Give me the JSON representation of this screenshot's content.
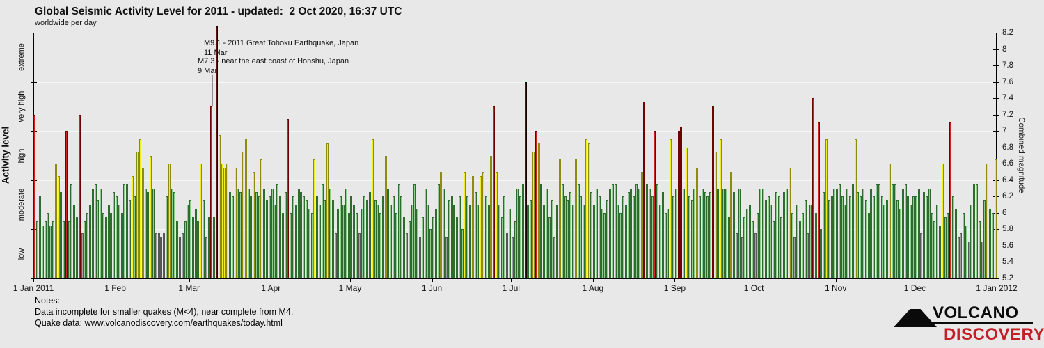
{
  "header": {
    "title": "Global Seismic Activity Level for 2011 - updated:  2 Oct 2020, 16:37 UTC",
    "subtitle": "worldwide per day"
  },
  "left_axis": {
    "label": "Activity level",
    "categories": [
      "extreme",
      "very high",
      "high",
      "moderate",
      "low"
    ]
  },
  "right_axis": {
    "label": "Combined magnitude",
    "min": 5.2,
    "max": 8.2,
    "tick_step": 0.2
  },
  "x_axis": {
    "tick_labels": [
      "1 Jan 2011",
      "1 Feb",
      "1 Mar",
      "1 Apr",
      "1 May",
      "1 Jun",
      "1 Jul",
      "1 Aug",
      "1 Sep",
      "1 Oct",
      "1 Nov",
      "1 Dec",
      "1 Jan 2012"
    ]
  },
  "annotations": {
    "tohoku": {
      "line1": "M9.1 - 2011 Great Tohoku Earthquake, Japan",
      "line2": "11 Mar"
    },
    "honshu": {
      "line1": "M7.3 - near the east coast of Honshu, Japan",
      "line2": "9 Mar"
    }
  },
  "notes": {
    "heading": "Notes:",
    "line1": "Data incomplete for smaller quakes (M<4), near complete from M4.",
    "line2": "Quake data: www.volcanodiscovery.com/earthquakes/today.html"
  },
  "logo": {
    "top": "VOLCANO",
    "bottom": "DISCOVERY",
    "accent_color": "#c41e26"
  },
  "chart_data": {
    "type": "bar",
    "title": "Global Seismic Activity Level for 2011",
    "subtitle": "worldwide per day",
    "x": "day of year 2011 (one bar per day, 1 Jan 2011 - 31 Dec 2011)",
    "ylabel_right": "Combined magnitude",
    "ylabel_left": "Activity level",
    "ylim": [
      5.2,
      8.2
    ],
    "grid_values": [
      5.8,
      6.4,
      7.0,
      7.6
    ],
    "levels": [
      {
        "name": "low",
        "min": 5.2,
        "max": 5.8,
        "fill": "#a2a2a2",
        "stroke": "#565656"
      },
      {
        "name": "moderate",
        "min": 5.8,
        "max": 6.4,
        "fill": "#90cb90",
        "stroke": "#2e6b2e"
      },
      {
        "name": "high",
        "min": 6.4,
        "max": 7.0,
        "fill": "#f2ee20",
        "stroke": "#8c8c10"
      },
      {
        "name": "very high",
        "min": 7.0,
        "max": 7.6,
        "fill": "#d12222",
        "stroke": "#6e0303"
      },
      {
        "name": "extreme",
        "min": 7.6,
        "max": 9.9,
        "fill": "#5e0f0f",
        "stroke": "#150000"
      }
    ],
    "notable_events": [
      {
        "date": "11 Mar",
        "magnitude": 9.1,
        "label": "M9.1 - 2011 Great Tohoku Earthquake, Japan"
      },
      {
        "date": "9 Mar",
        "magnitude": 7.3,
        "label": "M7.3 - near the east coast of Honshu, Japan"
      }
    ],
    "months": [
      {
        "name": "Jan",
        "days": 31,
        "values": [
          7.2,
          5.9,
          6.2,
          5.85,
          5.9,
          6.0,
          5.85,
          5.9,
          6.6,
          6.45,
          6.25,
          5.9,
          7.0,
          5.9,
          6.35,
          6.1,
          5.95,
          7.2,
          5.75,
          5.9,
          6.0,
          6.1,
          6.3,
          6.35,
          6.15,
          6.3,
          6.0,
          5.95,
          6.1,
          6.0,
          6.25
        ]
      },
      {
        "name": "Feb",
        "days": 28,
        "values": [
          6.2,
          6.1,
          6.0,
          6.35,
          6.35,
          6.15,
          6.45,
          6.2,
          6.75,
          6.9,
          6.55,
          6.3,
          6.25,
          6.7,
          6.3,
          5.75,
          5.75,
          5.7,
          5.75,
          6.2,
          6.6,
          6.3,
          6.25,
          5.9,
          5.7,
          5.75,
          5.9,
          6.1
        ]
      },
      {
        "name": "Mar",
        "days": 31,
        "values": [
          6.15,
          5.95,
          6.05,
          5.9,
          6.6,
          6.15,
          5.7,
          5.95,
          7.3,
          5.95,
          9.1,
          6.95,
          6.6,
          6.55,
          6.6,
          6.25,
          6.2,
          6.55,
          6.3,
          6.25,
          6.75,
          6.9,
          6.3,
          6.2,
          6.5,
          6.25,
          6.2,
          6.65,
          6.3,
          6.15,
          6.2
        ]
      },
      {
        "name": "Apr",
        "days": 30,
        "values": [
          6.3,
          6.1,
          6.35,
          6.2,
          6.0,
          6.25,
          7.15,
          6.0,
          6.2,
          6.1,
          6.3,
          6.25,
          6.2,
          6.15,
          6.05,
          6.0,
          6.65,
          6.2,
          6.1,
          6.35,
          6.15,
          6.85,
          6.3,
          6.15,
          5.75,
          6.05,
          6.2,
          6.1,
          6.3,
          6.0
        ]
      },
      {
        "name": "May",
        "days": 31,
        "values": [
          6.2,
          6.1,
          6.0,
          5.75,
          6.05,
          6.2,
          6.15,
          6.25,
          6.9,
          6.15,
          6.1,
          6.0,
          6.2,
          6.7,
          6.3,
          6.1,
          6.2,
          6.0,
          6.35,
          6.2,
          5.95,
          5.75,
          5.9,
          6.1,
          6.35,
          6.05,
          5.7,
          5.95,
          6.3,
          6.1,
          5.8
        ]
      },
      {
        "name": "Jun",
        "days": 30,
        "values": [
          5.95,
          6.05,
          6.35,
          6.5,
          6.3,
          5.7,
          6.15,
          6.2,
          6.1,
          5.95,
          6.2,
          5.8,
          6.5,
          6.2,
          6.1,
          6.45,
          6.25,
          6.1,
          6.45,
          6.5,
          6.2,
          6.1,
          6.7,
          7.3,
          6.5,
          6.1,
          5.95,
          6.2,
          5.75,
          6.05
        ]
      },
      {
        "name": "Jul",
        "days": 31,
        "values": [
          5.7,
          5.9,
          6.3,
          6.2,
          6.35,
          7.6,
          6.1,
          6.15,
          6.75,
          7.0,
          6.85,
          6.35,
          6.1,
          6.3,
          5.95,
          6.15,
          5.7,
          6.1,
          6.65,
          6.35,
          6.2,
          6.15,
          6.25,
          6.1,
          6.65,
          6.35,
          6.2,
          6.1,
          6.9,
          6.85,
          6.25
        ]
      },
      {
        "name": "Aug",
        "days": 31,
        "values": [
          6.1,
          6.3,
          6.2,
          6.05,
          6.0,
          6.15,
          6.3,
          6.35,
          6.35,
          6.1,
          6.0,
          6.2,
          6.1,
          6.25,
          6.3,
          6.2,
          6.35,
          6.3,
          6.5,
          7.35,
          6.35,
          6.3,
          6.2,
          7.0,
          6.35,
          6.1,
          6.25,
          6.0,
          6.05,
          6.9,
          6.2
        ]
      },
      {
        "name": "Sep",
        "days": 30,
        "values": [
          6.3,
          7.0,
          7.05,
          6.3,
          6.8,
          6.2,
          6.15,
          6.3,
          6.55,
          6.2,
          6.3,
          6.25,
          6.2,
          6.25,
          7.3,
          6.75,
          6.3,
          6.9,
          6.3,
          6.3,
          5.95,
          6.5,
          6.25,
          5.75,
          6.3,
          5.7,
          5.95,
          6.05,
          6.1,
          5.9
        ]
      },
      {
        "name": "Oct",
        "days": 31,
        "values": [
          5.75,
          6.0,
          6.3,
          6.3,
          6.15,
          6.2,
          6.1,
          5.9,
          6.25,
          6.2,
          5.95,
          6.25,
          6.3,
          6.55,
          6.0,
          5.7,
          6.1,
          5.9,
          6.0,
          6.15,
          5.75,
          6.1,
          7.4,
          6.0,
          7.1,
          5.8,
          6.25,
          6.9,
          6.15,
          6.2,
          6.3
        ]
      },
      {
        "name": "Nov",
        "days": 30,
        "values": [
          6.3,
          6.35,
          6.2,
          6.1,
          6.3,
          6.2,
          6.35,
          6.9,
          6.25,
          6.2,
          6.3,
          6.15,
          6.0,
          6.3,
          6.2,
          6.35,
          6.35,
          6.2,
          6.1,
          6.15,
          6.6,
          6.35,
          6.35,
          6.15,
          6.05,
          6.3,
          6.35,
          6.2,
          6.1,
          6.2
        ]
      },
      {
        "name": "Dec",
        "days": 31,
        "values": [
          6.2,
          6.3,
          5.75,
          6.25,
          6.2,
          6.3,
          6.0,
          5.9,
          6.1,
          5.85,
          6.6,
          5.95,
          6.0,
          7.1,
          6.2,
          6.05,
          5.7,
          5.75,
          6.0,
          5.85,
          5.65,
          6.1,
          6.35,
          6.35,
          5.9,
          5.65,
          6.15,
          6.6,
          6.05,
          6.0,
          6.65
        ]
      }
    ]
  }
}
